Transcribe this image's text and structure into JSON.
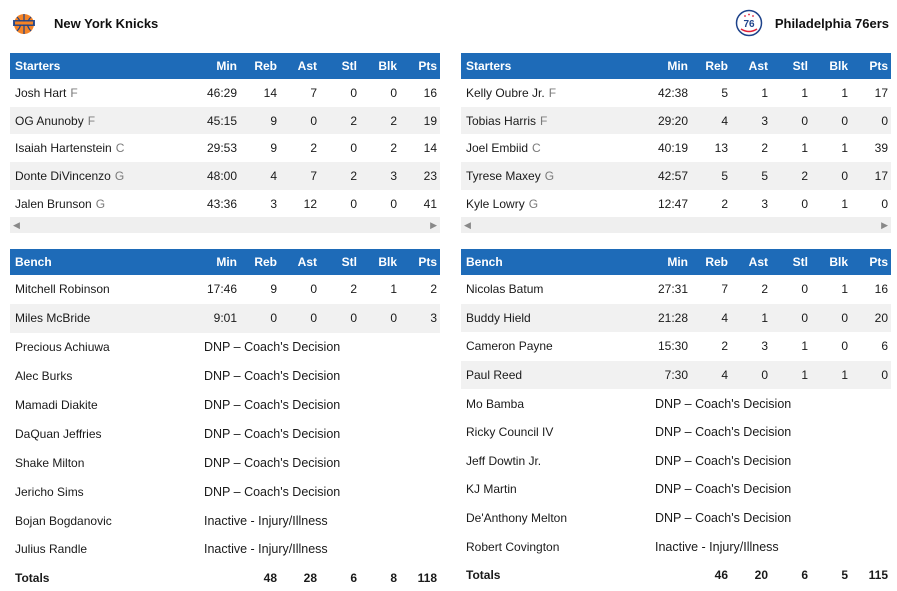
{
  "teams": {
    "left": {
      "name": "New York Knicks",
      "logo_icon": "knicks-logo",
      "brand_color": "#f58426"
    },
    "right": {
      "name": "Philadelphia 76ers",
      "logo_icon": "sixers-logo",
      "brand_color": "#1d428a"
    }
  },
  "header_color": "#1e6bb8",
  "columns": {
    "min": "Min",
    "reb": "Reb",
    "ast": "Ast",
    "stl": "Stl",
    "blk": "Blk",
    "pts": "Pts"
  },
  "knicks": {
    "starters_label": "Starters",
    "bench_label": "Bench",
    "starters": [
      {
        "name": "Josh Hart",
        "pos": "F",
        "min": "46:29",
        "reb": "14",
        "ast": "7",
        "stl": "0",
        "blk": "0",
        "pts": "16"
      },
      {
        "name": "OG Anunoby",
        "pos": "F",
        "min": "45:15",
        "reb": "9",
        "ast": "0",
        "stl": "2",
        "blk": "2",
        "pts": "19"
      },
      {
        "name": "Isaiah Hartenstein",
        "pos": "C",
        "min": "29:53",
        "reb": "9",
        "ast": "2",
        "stl": "0",
        "blk": "2",
        "pts": "14"
      },
      {
        "name": "Donte DiVincenzo",
        "pos": "G",
        "min": "48:00",
        "reb": "4",
        "ast": "7",
        "stl": "2",
        "blk": "3",
        "pts": "23"
      },
      {
        "name": "Jalen Brunson",
        "pos": "G",
        "min": "43:36",
        "reb": "3",
        "ast": "12",
        "stl": "0",
        "blk": "0",
        "pts": "41"
      }
    ],
    "bench": [
      {
        "name": "Mitchell Robinson",
        "min": "17:46",
        "reb": "9",
        "ast": "0",
        "stl": "2",
        "blk": "1",
        "pts": "2"
      },
      {
        "name": "Miles McBride",
        "min": "9:01",
        "reb": "0",
        "ast": "0",
        "stl": "0",
        "blk": "0",
        "pts": "3"
      },
      {
        "name": "Precious Achiuwa",
        "status": "DNP – Coach's Decision"
      },
      {
        "name": "Alec Burks",
        "status": "DNP – Coach's Decision"
      },
      {
        "name": "Mamadi Diakite",
        "status": "DNP – Coach's Decision"
      },
      {
        "name": "DaQuan Jeffries",
        "status": "DNP – Coach's Decision"
      },
      {
        "name": "Shake Milton",
        "status": "DNP – Coach's Decision"
      },
      {
        "name": "Jericho Sims",
        "status": "DNP – Coach's Decision"
      },
      {
        "name": "Bojan Bogdanovic",
        "status": "Inactive - Injury/Illness"
      },
      {
        "name": "Julius Randle",
        "status": "Inactive - Injury/Illness"
      }
    ],
    "totals": {
      "label": "Totals",
      "min": "",
      "reb": "48",
      "ast": "28",
      "stl": "6",
      "blk": "8",
      "pts": "118"
    }
  },
  "sixers": {
    "starters_label": "Starters",
    "bench_label": "Bench",
    "starters": [
      {
        "name": "Kelly Oubre Jr.",
        "pos": "F",
        "min": "42:38",
        "reb": "5",
        "ast": "1",
        "stl": "1",
        "blk": "1",
        "pts": "17"
      },
      {
        "name": "Tobias Harris",
        "pos": "F",
        "min": "29:20",
        "reb": "4",
        "ast": "3",
        "stl": "0",
        "blk": "0",
        "pts": "0"
      },
      {
        "name": "Joel Embiid",
        "pos": "C",
        "min": "40:19",
        "reb": "13",
        "ast": "2",
        "stl": "1",
        "blk": "1",
        "pts": "39"
      },
      {
        "name": "Tyrese Maxey",
        "pos": "G",
        "min": "42:57",
        "reb": "5",
        "ast": "5",
        "stl": "2",
        "blk": "0",
        "pts": "17"
      },
      {
        "name": "Kyle Lowry",
        "pos": "G",
        "min": "12:47",
        "reb": "2",
        "ast": "3",
        "stl": "0",
        "blk": "1",
        "pts": "0"
      }
    ],
    "bench": [
      {
        "name": "Nicolas Batum",
        "min": "27:31",
        "reb": "7",
        "ast": "2",
        "stl": "0",
        "blk": "1",
        "pts": "16"
      },
      {
        "name": "Buddy Hield",
        "min": "21:28",
        "reb": "4",
        "ast": "1",
        "stl": "0",
        "blk": "0",
        "pts": "20"
      },
      {
        "name": "Cameron Payne",
        "min": "15:30",
        "reb": "2",
        "ast": "3",
        "stl": "1",
        "blk": "0",
        "pts": "6"
      },
      {
        "name": "Paul Reed",
        "min": "7:30",
        "reb": "4",
        "ast": "0",
        "stl": "1",
        "blk": "1",
        "pts": "0"
      },
      {
        "name": "Mo Bamba",
        "status": "DNP – Coach's Decision"
      },
      {
        "name": "Ricky Council IV",
        "status": "DNP – Coach's Decision"
      },
      {
        "name": "Jeff Dowtin Jr.",
        "status": "DNP – Coach's Decision"
      },
      {
        "name": "KJ Martin",
        "status": "DNP – Coach's Decision"
      },
      {
        "name": "De'Anthony Melton",
        "status": "DNP – Coach's Decision"
      },
      {
        "name": "Robert Covington",
        "status": "Inactive - Injury/Illness"
      }
    ],
    "totals": {
      "label": "Totals",
      "min": "",
      "reb": "46",
      "ast": "20",
      "stl": "6",
      "blk": "5",
      "pts": "115"
    }
  }
}
